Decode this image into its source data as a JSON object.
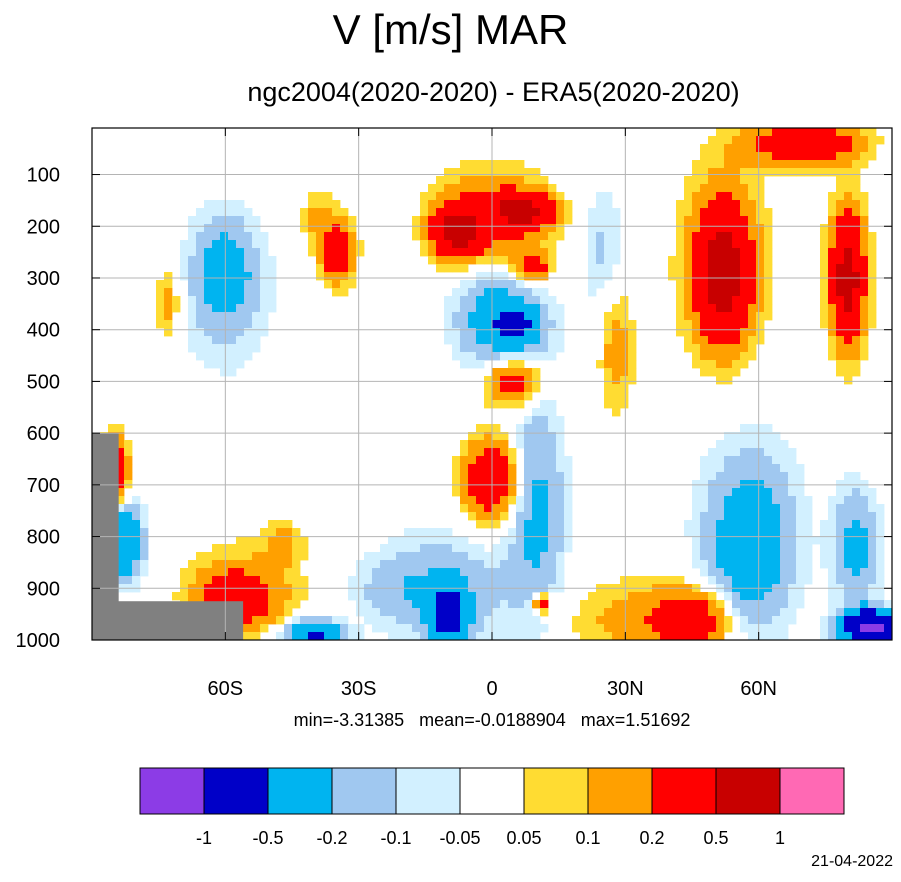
{
  "chart_data": {
    "type": "heatmap",
    "title": "V [m/s] MAR",
    "subtitle": "ngc2004(2020-2020) - ERA5(2020-2020)",
    "x_ticks": [
      "60S",
      "30S",
      "0",
      "30N",
      "60N"
    ],
    "x_tick_values": [
      -60,
      -30,
      0,
      30,
      60
    ],
    "xlim": [
      -90,
      90
    ],
    "y_ticks": [
      "100",
      "200",
      "300",
      "400",
      "500",
      "600",
      "700",
      "800",
      "900",
      "1000"
    ],
    "y_tick_values": [
      100,
      200,
      300,
      400,
      500,
      600,
      700,
      800,
      900,
      1000
    ],
    "ylim": [
      10,
      1000
    ],
    "y_reversed": true,
    "grid": true,
    "stats_text": "min=-3.31385   mean=-0.0188904   max=1.51692",
    "colorbar": {
      "colors": [
        "#8c3ce6",
        "#0000c8",
        "#00b4f0",
        "#a0c8f0",
        "#d2f0ff",
        "#ffffff",
        "#ffdc32",
        "#ffa000",
        "#ff0000",
        "#c80000",
        "#ff69b4"
      ],
      "labels": [
        "-1",
        "-0.5",
        "-0.2",
        "-0.1",
        "-0.05",
        "0.05",
        "0.1",
        "0.2",
        "0.5",
        "1"
      ],
      "levels": [
        -1,
        -0.5,
        -0.2,
        -0.1,
        -0.05,
        0.05,
        0.1,
        0.2,
        0.5,
        1
      ]
    },
    "features": [
      {
        "lat": -8,
        "p": 210,
        "value": 0.6,
        "rlat": 5,
        "rp": 45
      },
      {
        "lat": 7,
        "p": 170,
        "value": 0.55,
        "rlat": 6,
        "rp": 30
      },
      {
        "lat": 0,
        "p": 190,
        "value": 0.3,
        "rlat": 12,
        "rp": 90
      },
      {
        "lat": 9,
        "p": 280,
        "value": 0.3,
        "rlat": 4,
        "rp": 25
      },
      {
        "lat": 5,
        "p": 500,
        "value": 0.35,
        "rlat": 6,
        "rp": 45
      },
      {
        "lat": 0,
        "p": 690,
        "value": 0.3,
        "rlat": 6,
        "rp": 70
      },
      {
        "lat": 0,
        "p": 700,
        "value": 0.1,
        "rlat": 8,
        "rp": 100
      },
      {
        "lat": 5,
        "p": 390,
        "value": -0.6,
        "rlat": 4,
        "rp": 30
      },
      {
        "lat": 3,
        "p": 390,
        "value": -0.25,
        "rlat": 10,
        "rp": 80
      },
      {
        "lat": 0,
        "p": 330,
        "value": -0.12,
        "rlat": 8,
        "rp": 110
      },
      {
        "lat": -35,
        "p": 250,
        "value": 0.3,
        "rlat": 3,
        "rp": 45
      },
      {
        "lat": -35,
        "p": 240,
        "value": 0.12,
        "rlat": 5,
        "rp": 90
      },
      {
        "lat": -60,
        "p": 290,
        "value": -0.25,
        "rlat": 6,
        "rp": 90
      },
      {
        "lat": -60,
        "p": 330,
        "value": -0.1,
        "rlat": 12,
        "rp": 180
      },
      {
        "lat": -73,
        "p": 350,
        "value": 0.15,
        "rlat": 3,
        "rp": 80
      },
      {
        "lat": -85,
        "p": 680,
        "value": 0.4,
        "rlat": 3,
        "rp": 70
      },
      {
        "lat": -83,
        "p": 810,
        "value": -0.5,
        "rlat": 4,
        "rp": 70
      },
      {
        "lat": -58,
        "p": 920,
        "value": 0.3,
        "rlat": 8,
        "rp": 50
      },
      {
        "lat": -55,
        "p": 900,
        "value": 0.12,
        "rlat": 14,
        "rp": 100
      },
      {
        "lat": 52,
        "p": 290,
        "value": 0.5,
        "rlat": 5,
        "rp": 110
      },
      {
        "lat": 52,
        "p": 280,
        "value": 0.25,
        "rlat": 9,
        "rp": 180
      },
      {
        "lat": 80,
        "p": 300,
        "value": 0.5,
        "rlat": 3,
        "rp": 100
      },
      {
        "lat": 80,
        "p": 300,
        "value": 0.2,
        "rlat": 5,
        "rp": 160
      },
      {
        "lat": 70,
        "p": 40,
        "value": 0.4,
        "rlat": 12,
        "rp": 40
      },
      {
        "lat": 28,
        "p": 430,
        "value": 0.15,
        "rlat": 4,
        "rp": 130
      },
      {
        "lat": 25,
        "p": 250,
        "value": -0.12,
        "rlat": 5,
        "rp": 130
      },
      {
        "lat": 58,
        "p": 820,
        "value": -0.3,
        "rlat": 8,
        "rp": 130
      },
      {
        "lat": 58,
        "p": 780,
        "value": -0.1,
        "rlat": 14,
        "rp": 230
      },
      {
        "lat": 82,
        "p": 820,
        "value": -0.25,
        "rlat": 5,
        "rp": 110
      },
      {
        "lat": 85,
        "p": 975,
        "value": -1.2,
        "rlat": 6,
        "rp": 30
      },
      {
        "lat": -10,
        "p": 950,
        "value": -0.7,
        "rlat": 4,
        "rp": 50
      },
      {
        "lat": -10,
        "p": 900,
        "value": -0.15,
        "rlat": 16,
        "rp": 120
      },
      {
        "lat": 10,
        "p": 740,
        "value": -0.25,
        "rlat": 6,
        "rp": 200
      },
      {
        "lat": 45,
        "p": 960,
        "value": 0.35,
        "rlat": 9,
        "rp": 60
      },
      {
        "lat": 30,
        "p": 960,
        "value": 0.12,
        "rlat": 14,
        "rp": 80
      },
      {
        "lat": 11,
        "p": 930,
        "value": 0.35,
        "rlat": 2,
        "rp": 20
      },
      {
        "lat": -40,
        "p": 990,
        "value": -0.6,
        "rlat": 6,
        "rp": 25
      },
      {
        "lat": -47,
        "p": 810,
        "value": 0.12,
        "rlat": 4,
        "rp": 40
      },
      {
        "lat": -20,
        "p": 900,
        "value": -0.1,
        "rlat": 12,
        "rp": 60
      },
      {
        "lat": -40,
        "p": 180,
        "value": 0.1,
        "rlat": 3,
        "rp": 50
      }
    ]
  },
  "date": "21-04-2022"
}
